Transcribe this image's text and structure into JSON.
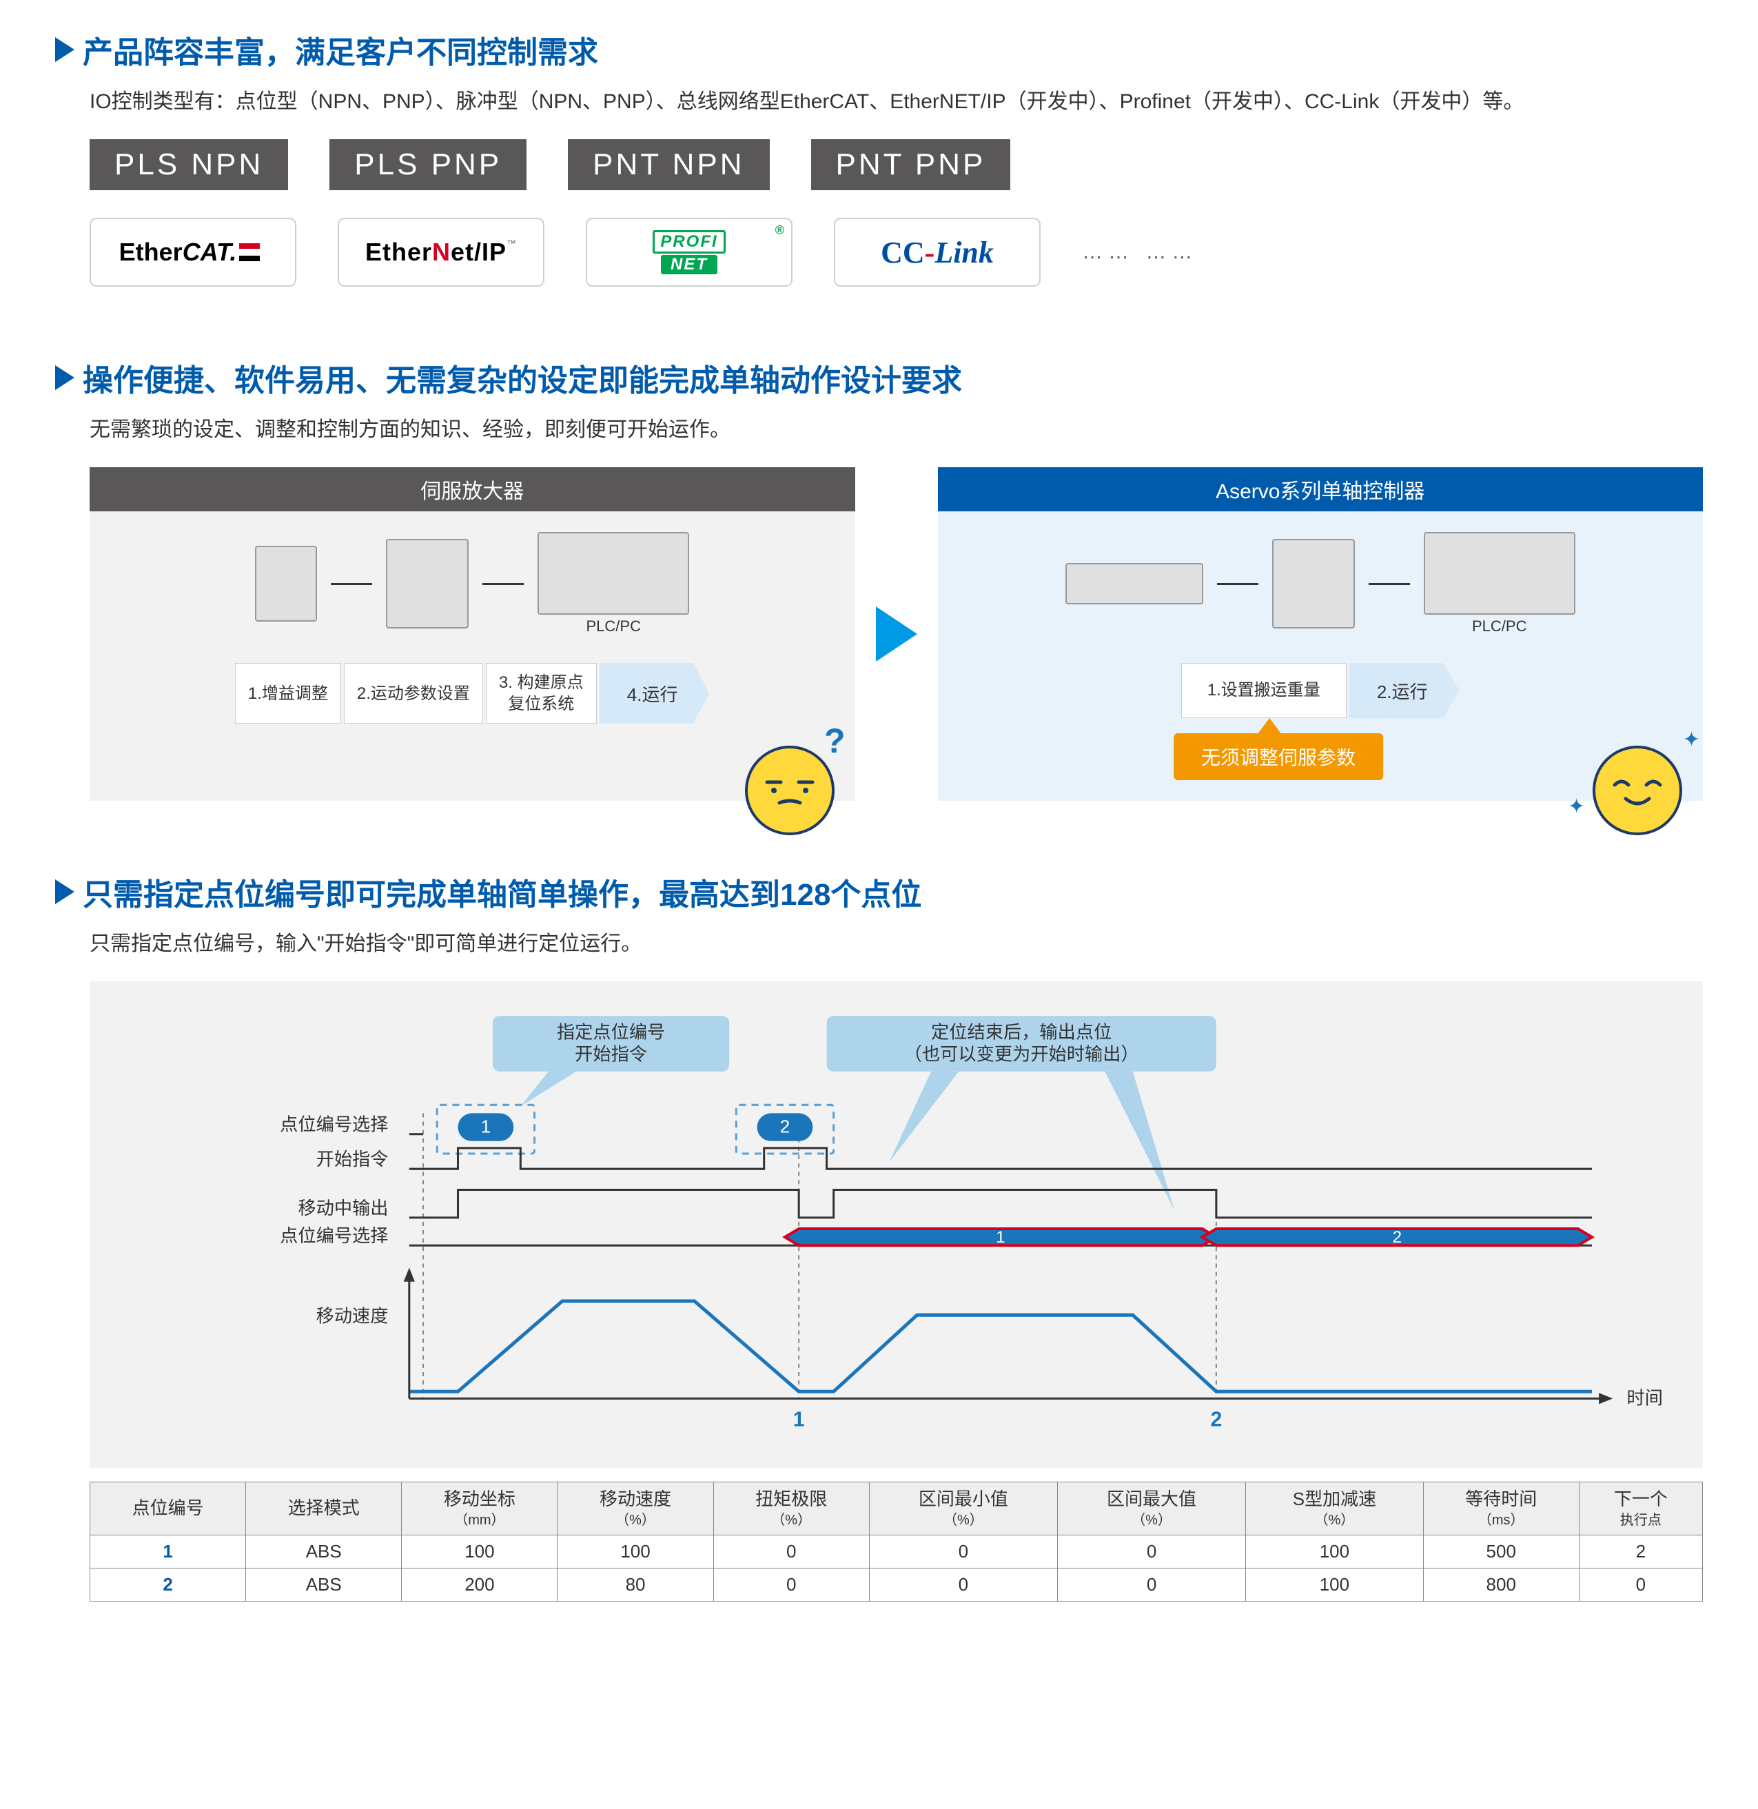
{
  "colors": {
    "accent_blue": "#005bac",
    "brand_blue": "#004ea2",
    "light_blue_bg": "#e8f2fb",
    "sky_blue": "#0099e5",
    "gray_badge": "#595757",
    "orange": "#f39800",
    "emoji_yellow": "#ffd93b",
    "emoji_border": "#1b3a6b",
    "red": "#d7001d",
    "green": "#00a651",
    "panel_gray": "#f2f2f2",
    "table_border": "#888888",
    "step_light_blue": "#d6e9f8",
    "dashed_border": "#5aa0d8"
  },
  "section1": {
    "title": "产品阵容丰富，满足客户不同控制需求",
    "desc": "IO控制类型有：点位型（NPN、PNP）、脉冲型（NPN、PNP）、总线网络型EtherCAT、EtherNET/IP（开发中）、Profinet（开发中）、CC-Link（开发中）等。",
    "badges": [
      "PLS  NPN",
      "PLS  PNP",
      "PNT  NPN",
      "PNT  PNP"
    ],
    "logos": {
      "ethercat": {
        "ether": "Ether",
        "cat": "CAT."
      },
      "ethernetip": {
        "pre": "Ether",
        "n": "N",
        "post": "et/IP"
      },
      "profinet": {
        "row1": "PROFI",
        "row2": "NET",
        "reg": "®"
      },
      "cclink": {
        "cc": "CC",
        "dash": "-",
        "link": "Link"
      }
    },
    "more": "…… ……"
  },
  "section2": {
    "title": "操作便捷、软件易用、无需复杂的设定即能完成单轴动作设计要求",
    "desc": "无需繁琐的设定、调整和控制方面的知识、经验，即刻便可开始运作。",
    "left": {
      "header": "伺服放大器",
      "plc_label": "PLC/PC",
      "steps": [
        "1.增益调整",
        "2.运动参数设置",
        "3. 构建原点\n复位系统"
      ],
      "final": "4.运行"
    },
    "right": {
      "header": "Aservo系列单轴控制器",
      "plc_label": "PLC/PC",
      "steps": [
        "1.设置搬运重量"
      ],
      "final": "2.运行",
      "callout": "无须调整伺服参数"
    }
  },
  "section3": {
    "title": "只需指定点位编号即可完成单轴简单操作，最高达到128个点位",
    "desc": "只需指定点位编号，输入\"开始指令\"即可简单进行定位运行。",
    "bubble1": "指定点位编号\n开始指令",
    "bubble2": "定位结束后，输出点位\n（也可以变更为开始时输出）",
    "signal_labels": [
      "点位编号选择",
      "开始指令",
      "移动中输出",
      "点位编号选择",
      "移动速度"
    ],
    "badge1": "1",
    "badge2": "2",
    "strip1": "1",
    "strip2": "2",
    "x_label": "时间",
    "x_tick1": "1",
    "x_tick2": "2",
    "table": {
      "headers": [
        {
          "label": "点位编号",
          "unit": ""
        },
        {
          "label": "选择模式",
          "unit": ""
        },
        {
          "label": "移动坐标",
          "unit": "（mm）"
        },
        {
          "label": "移动速度",
          "unit": "（%）"
        },
        {
          "label": "扭矩极限",
          "unit": "（%）"
        },
        {
          "label": "区间最小值",
          "unit": "（%）"
        },
        {
          "label": "区间最大值",
          "unit": "（%）"
        },
        {
          "label": "S型加减速",
          "unit": "（%）"
        },
        {
          "label": "等待时间",
          "unit": "（ms）"
        },
        {
          "label": "下一个",
          "unit": "执行点"
        }
      ],
      "rows": [
        [
          "1",
          "ABS",
          "100",
          "100",
          "0",
          "0",
          "0",
          "100",
          "500",
          "2"
        ],
        [
          "2",
          "ABS",
          "200",
          "80",
          "0",
          "0",
          "0",
          "100",
          "800",
          "0"
        ]
      ]
    }
  }
}
